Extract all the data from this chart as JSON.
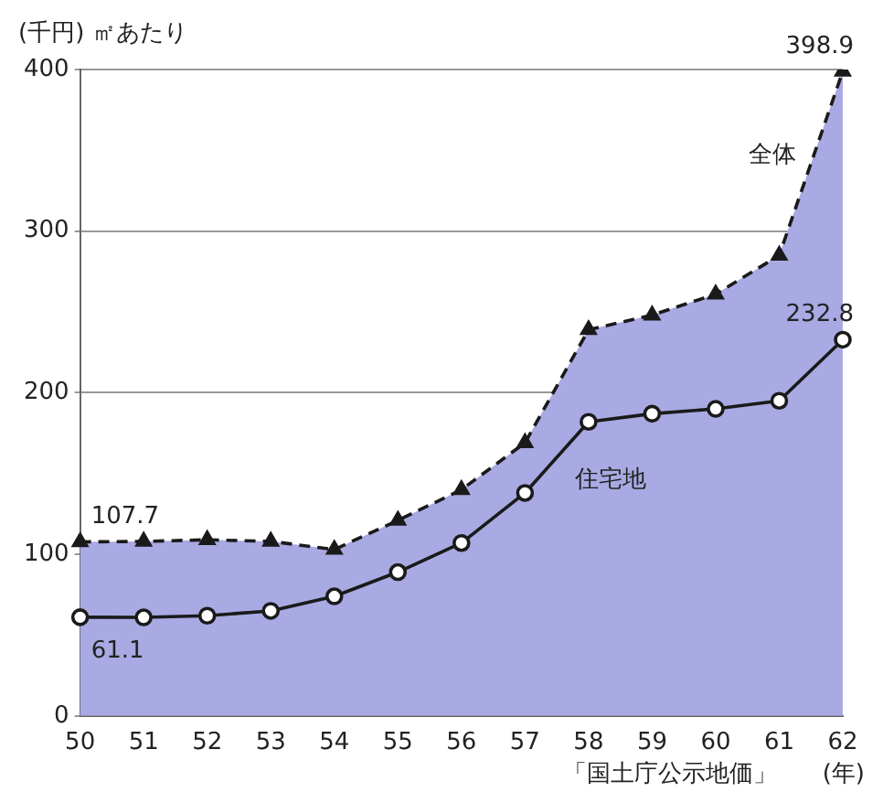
{
  "chart_data": {
    "type": "line",
    "ylabel": "(千円) ㎡あたり",
    "xlabel": "(年)",
    "annotations": [
      "「国土庁公示地価」"
    ],
    "categories": [
      "50",
      "51",
      "52",
      "53",
      "54",
      "55",
      "56",
      "57",
      "58",
      "59",
      "60",
      "61",
      "62"
    ],
    "series": [
      {
        "name": "全体",
        "type": "area",
        "color": "#a9aae3",
        "marker": "triangle",
        "line_style": "dashed",
        "values": [
          107.7,
          108,
          109,
          108,
          103,
          121,
          140,
          169,
          239,
          248,
          261,
          285,
          398.9
        ],
        "value_labels": [
          "107.7",
          null,
          null,
          null,
          null,
          null,
          null,
          null,
          null,
          null,
          null,
          null,
          "398.9"
        ]
      },
      {
        "name": "住宅地",
        "color": "#1a1a1a",
        "marker": "circle",
        "line_style": "solid",
        "values": [
          61.1,
          61,
          62,
          65,
          74,
          89,
          107,
          138,
          182,
          187,
          190,
          195,
          232.8
        ],
        "value_labels": [
          "61.1",
          null,
          null,
          null,
          null,
          null,
          null,
          null,
          null,
          null,
          null,
          null,
          "232.8"
        ]
      }
    ],
    "ylim": [
      0,
      400
    ],
    "yticks": [
      0,
      100,
      200,
      300,
      400
    ],
    "grid": "y",
    "legend": false
  }
}
